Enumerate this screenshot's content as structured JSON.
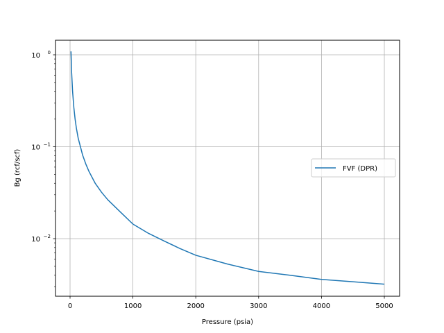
{
  "chart_data": {
    "type": "line",
    "title": "",
    "xlabel": "Pressure (psia)",
    "ylabel": "Bg (rcf/scf)",
    "xscale": "linear",
    "yscale": "log",
    "xlim": [
      -220,
      5220
    ],
    "ylim": [
      0.00235,
      1.45
    ],
    "xticks": [
      0,
      1000,
      2000,
      3000,
      4000,
      5000
    ],
    "xtick_labels": [
      "0",
      "1000",
      "2000",
      "3000",
      "4000",
      "5000"
    ],
    "yticks": [
      1,
      0.1,
      0.01
    ],
    "ytick_labels": [
      {
        "base": "10",
        "exp": "0"
      },
      {
        "base": "10",
        "exp": "−1"
      },
      {
        "base": "10",
        "exp": "−2"
      }
    ],
    "grid": true,
    "legend_position": "center right",
    "series": [
      {
        "name": "FVF (DPR)",
        "color": "#1f77b4",
        "x": [
          14.7,
          25,
          40,
          60,
          80,
          100,
          130,
          165,
          200,
          250,
          300,
          400,
          500,
          600,
          800,
          1000,
          1250,
          1500,
          1750,
          2000,
          2500,
          3000,
          3500,
          4000,
          4500,
          5000
        ],
        "y": [
          1.09,
          0.64,
          0.4,
          0.267,
          0.2,
          0.16,
          0.123,
          0.1,
          0.081,
          0.065,
          0.054,
          0.04,
          0.032,
          0.0265,
          0.0195,
          0.0144,
          0.0114,
          0.0094,
          0.0078,
          0.0066,
          0.0053,
          0.0044,
          0.004,
          0.0036,
          0.0034,
          0.0032
        ]
      }
    ]
  },
  "legend": {
    "label": "FVF (DPR)"
  }
}
